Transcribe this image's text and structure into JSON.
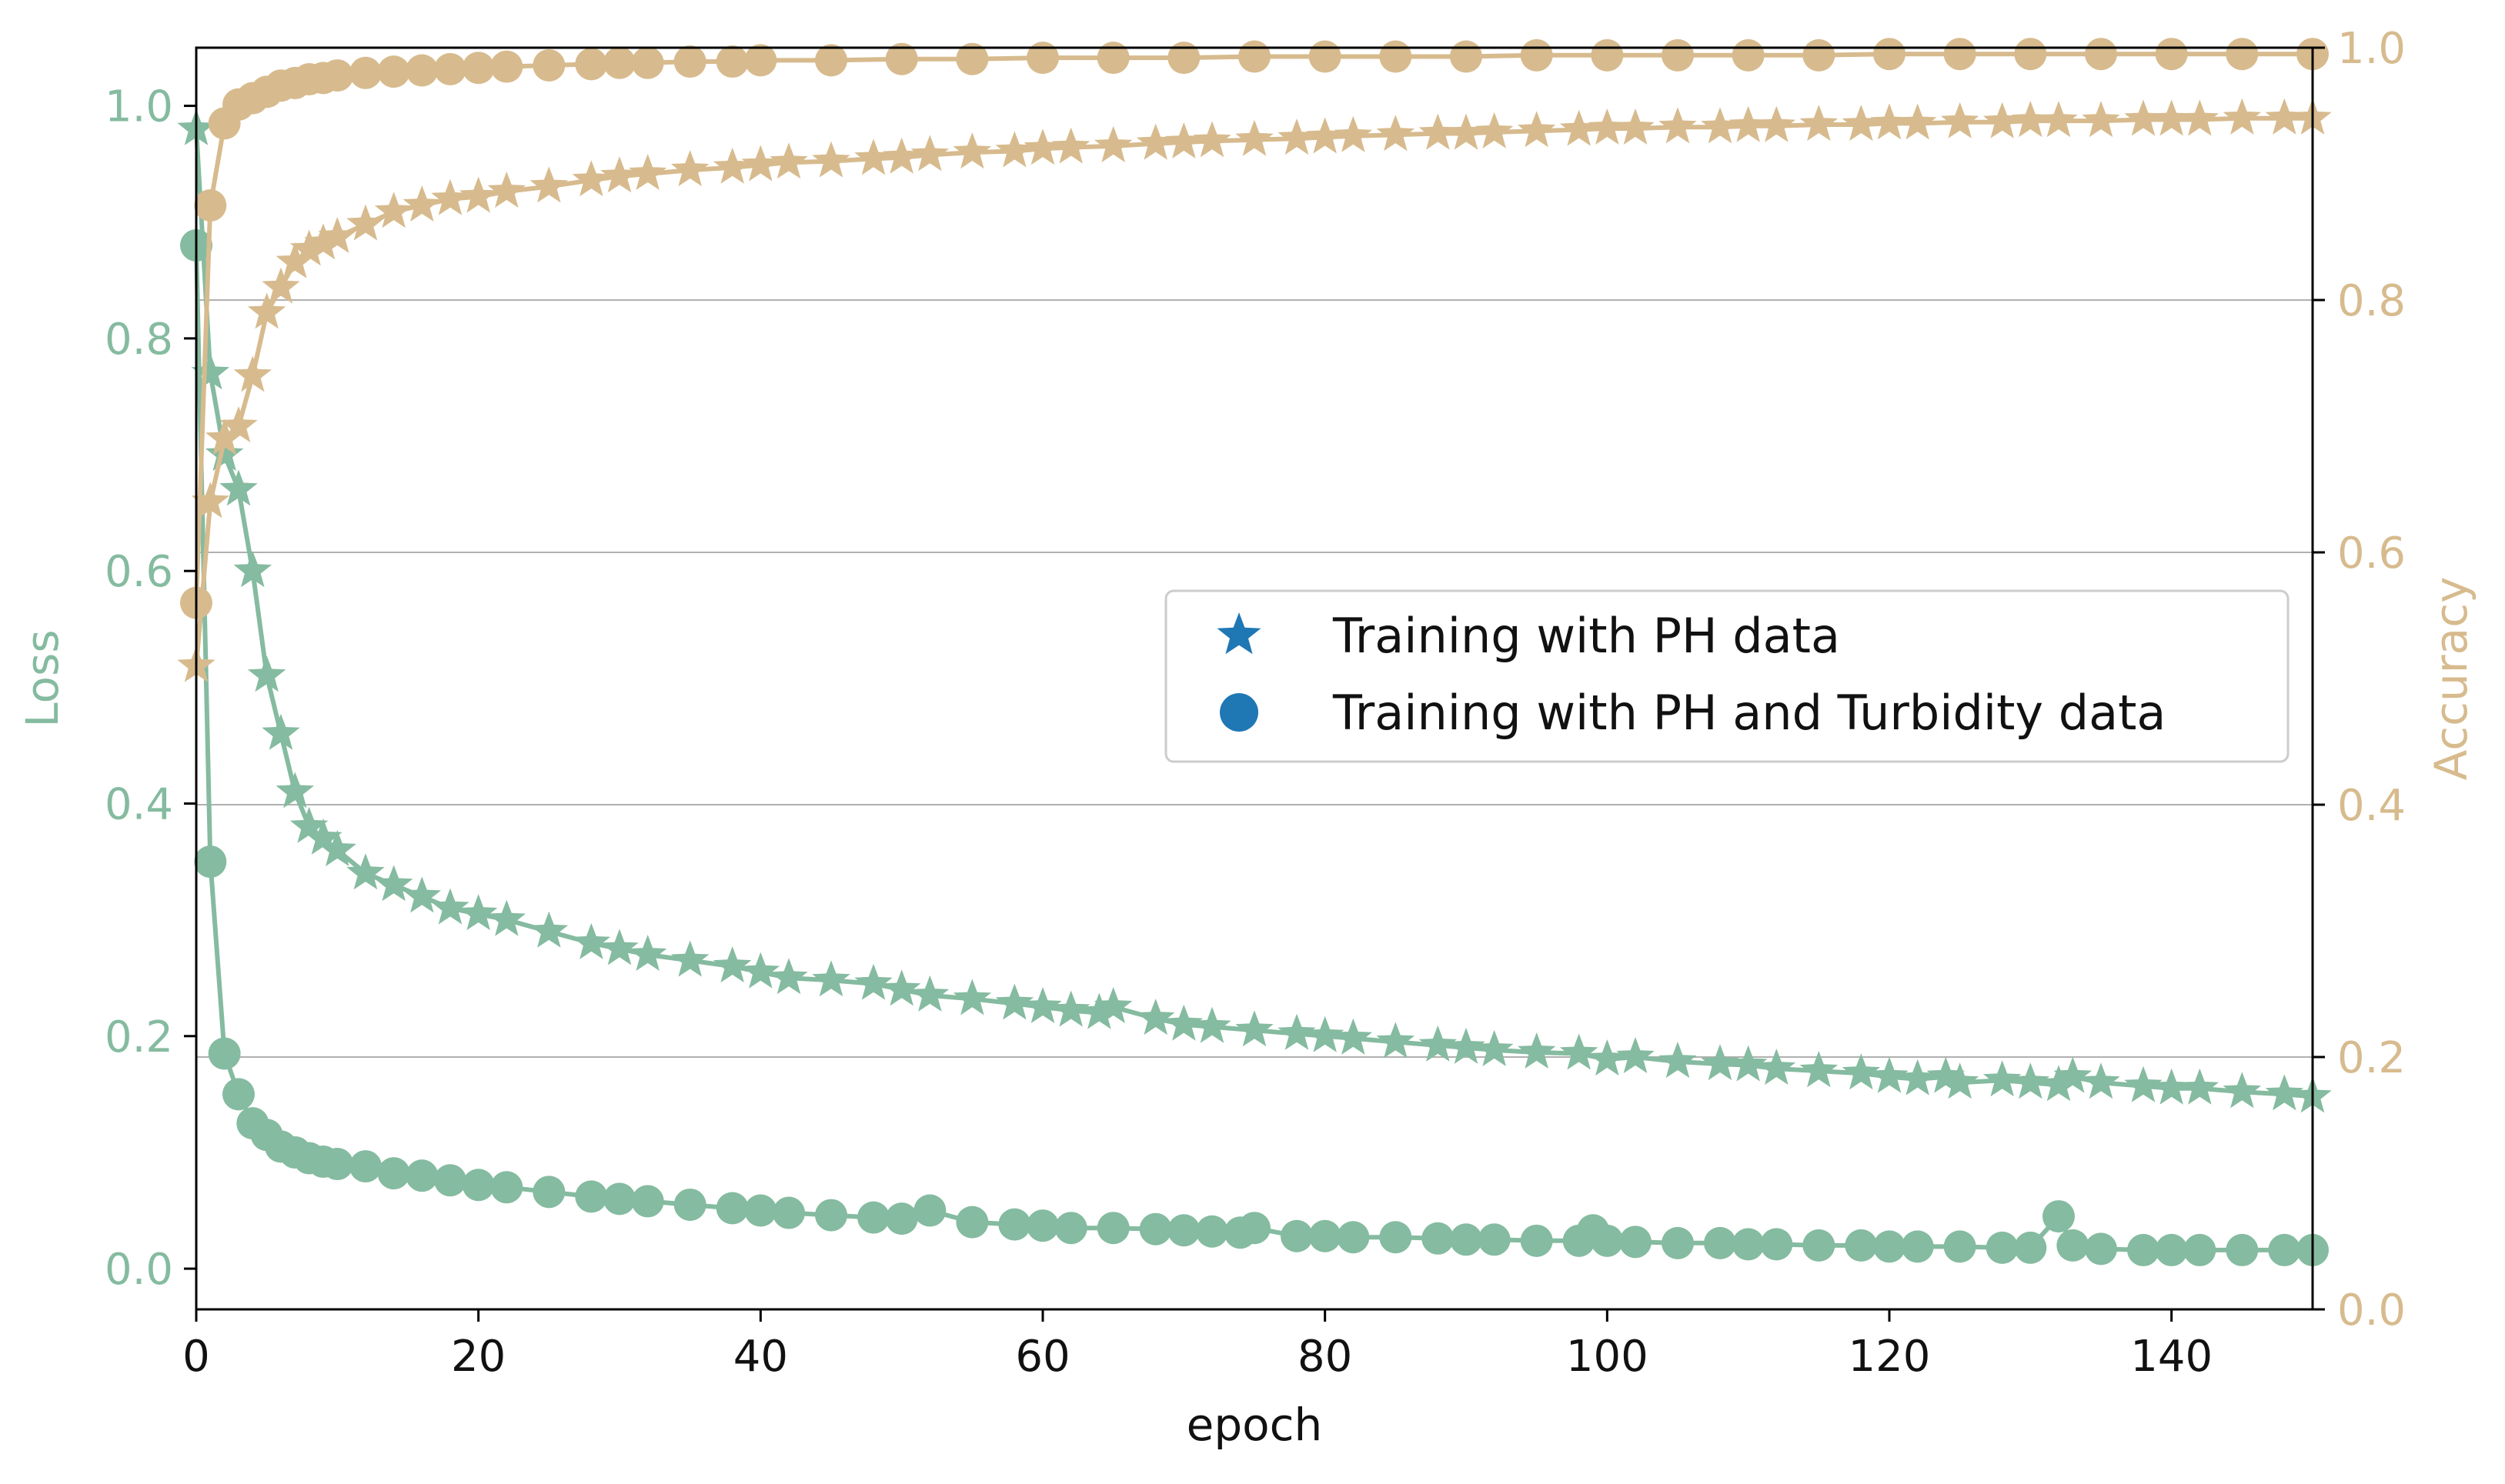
{
  "chart_data": {
    "type": "line",
    "title": "",
    "xlabel": "epoch",
    "ylabel_left": "Loss",
    "ylabel_right": "Accuracy",
    "xlim": [
      0,
      150
    ],
    "ylim_left": [
      -0.035,
      1.05
    ],
    "ylim_right": [
      0.0,
      1.0
    ],
    "x_ticks": [
      "0",
      "20",
      "40",
      "60",
      "80",
      "100",
      "120",
      "140"
    ],
    "x_tick_values": [
      0,
      20,
      40,
      60,
      80,
      100,
      120,
      140
    ],
    "y_left_ticks": [
      "0.0",
      "0.2",
      "0.4",
      "0.6",
      "0.8",
      "1.0"
    ],
    "y_left_tick_values": [
      0.0,
      0.2,
      0.4,
      0.6,
      0.8,
      1.0
    ],
    "y_right_ticks": [
      "0.0",
      "0.2",
      "0.4",
      "0.6",
      "0.8",
      "1.0"
    ],
    "y_right_tick_values": [
      0.0,
      0.2,
      0.4,
      0.6,
      0.8,
      1.0
    ],
    "grid": "horizontal (right axis)",
    "legend_position": "center-right",
    "legend": [
      {
        "label": "Training with PH data",
        "marker": "star"
      },
      {
        "label": "Training with PH and Turbidity data",
        "marker": "circle"
      }
    ],
    "colors": {
      "loss": "#85bba0",
      "accuracy": "#d7bb8e",
      "legend_marker": "#1f77b4",
      "grid": "#b0b0b0",
      "axis": "#000000"
    },
    "series": [
      {
        "name": "Loss - Training with PH data",
        "axis": "left",
        "marker": "star",
        "x": [
          0,
          1,
          2,
          3,
          4,
          5,
          6,
          7,
          8,
          9,
          10,
          12,
          14,
          16,
          18,
          20,
          22,
          25,
          28,
          30,
          32,
          35,
          38,
          40,
          42,
          45,
          48,
          50,
          52,
          55,
          58,
          60,
          62,
          64,
          65,
          68,
          70,
          72,
          75,
          78,
          80,
          82,
          85,
          88,
          90,
          92,
          95,
          98,
          100,
          102,
          105,
          108,
          110,
          112,
          115,
          118,
          120,
          122,
          124,
          125,
          128,
          130,
          132,
          133,
          135,
          138,
          140,
          142,
          145,
          148,
          150
        ],
        "y": [
          0.98,
          0.77,
          0.7,
          0.67,
          0.6,
          0.51,
          0.46,
          0.41,
          0.38,
          0.37,
          0.36,
          0.34,
          0.33,
          0.32,
          0.31,
          0.305,
          0.3,
          0.29,
          0.28,
          0.275,
          0.27,
          0.265,
          0.26,
          0.255,
          0.25,
          0.248,
          0.245,
          0.24,
          0.235,
          0.232,
          0.228,
          0.225,
          0.222,
          0.22,
          0.225,
          0.215,
          0.21,
          0.208,
          0.205,
          0.202,
          0.2,
          0.198,
          0.195,
          0.192,
          0.19,
          0.188,
          0.186,
          0.185,
          0.18,
          0.182,
          0.178,
          0.176,
          0.175,
          0.172,
          0.17,
          0.168,
          0.165,
          0.163,
          0.165,
          0.16,
          0.162,
          0.16,
          0.158,
          0.165,
          0.16,
          0.157,
          0.155,
          0.155,
          0.152,
          0.15,
          0.148
        ]
      },
      {
        "name": "Loss - Training with PH and Turbidity data",
        "axis": "left",
        "marker": "circle",
        "x": [
          0,
          1,
          2,
          3,
          4,
          5,
          6,
          7,
          8,
          9,
          10,
          12,
          14,
          16,
          18,
          20,
          22,
          25,
          28,
          30,
          32,
          35,
          38,
          40,
          42,
          45,
          48,
          50,
          52,
          55,
          58,
          60,
          62,
          65,
          68,
          70,
          72,
          74,
          75,
          78,
          80,
          82,
          85,
          88,
          90,
          92,
          95,
          98,
          99,
          100,
          102,
          105,
          108,
          110,
          112,
          115,
          118,
          120,
          122,
          125,
          128,
          130,
          132,
          133,
          135,
          138,
          140,
          142,
          145,
          148,
          150
        ],
        "y": [
          0.88,
          0.35,
          0.185,
          0.15,
          0.125,
          0.115,
          0.105,
          0.1,
          0.095,
          0.092,
          0.09,
          0.088,
          0.082,
          0.08,
          0.076,
          0.072,
          0.07,
          0.066,
          0.062,
          0.06,
          0.058,
          0.055,
          0.052,
          0.05,
          0.048,
          0.046,
          0.044,
          0.043,
          0.05,
          0.04,
          0.038,
          0.037,
          0.035,
          0.035,
          0.034,
          0.033,
          0.032,
          0.031,
          0.035,
          0.028,
          0.028,
          0.027,
          0.027,
          0.026,
          0.025,
          0.025,
          0.024,
          0.024,
          0.033,
          0.024,
          0.023,
          0.022,
          0.022,
          0.021,
          0.021,
          0.02,
          0.02,
          0.019,
          0.019,
          0.019,
          0.018,
          0.018,
          0.045,
          0.02,
          0.017,
          0.016,
          0.016,
          0.016,
          0.016,
          0.016,
          0.016
        ]
      },
      {
        "name": "Accuracy - Training with PH data",
        "axis": "right",
        "marker": "star",
        "x": [
          0,
          1,
          2,
          3,
          4,
          5,
          6,
          7,
          8,
          9,
          10,
          12,
          14,
          16,
          18,
          20,
          22,
          25,
          28,
          30,
          32,
          35,
          38,
          40,
          42,
          45,
          48,
          50,
          52,
          55,
          58,
          60,
          62,
          65,
          68,
          70,
          72,
          75,
          78,
          80,
          82,
          85,
          88,
          90,
          92,
          95,
          98,
          100,
          102,
          105,
          108,
          110,
          112,
          115,
          118,
          120,
          122,
          125,
          128,
          130,
          132,
          135,
          138,
          140,
          142,
          145,
          148,
          150
        ],
        "y": [
          0.51,
          0.64,
          0.69,
          0.7,
          0.74,
          0.79,
          0.81,
          0.83,
          0.84,
          0.845,
          0.85,
          0.86,
          0.87,
          0.875,
          0.88,
          0.882,
          0.886,
          0.89,
          0.895,
          0.898,
          0.9,
          0.903,
          0.905,
          0.907,
          0.909,
          0.91,
          0.912,
          0.913,
          0.915,
          0.917,
          0.918,
          0.92,
          0.921,
          0.922,
          0.924,
          0.925,
          0.926,
          0.927,
          0.928,
          0.929,
          0.93,
          0.931,
          0.932,
          0.932,
          0.933,
          0.934,
          0.935,
          0.936,
          0.936,
          0.937,
          0.937,
          0.938,
          0.938,
          0.939,
          0.939,
          0.94,
          0.94,
          0.941,
          0.941,
          0.942,
          0.942,
          0.942,
          0.943,
          0.943,
          0.943,
          0.944,
          0.944,
          0.944
        ]
      },
      {
        "name": "Accuracy - Training with PH and Turbidity data",
        "axis": "right",
        "marker": "circle",
        "x": [
          0,
          1,
          2,
          3,
          4,
          5,
          6,
          7,
          8,
          9,
          10,
          12,
          14,
          16,
          18,
          20,
          22,
          25,
          28,
          30,
          32,
          35,
          38,
          40,
          45,
          50,
          55,
          60,
          65,
          70,
          75,
          80,
          85,
          90,
          95,
          100,
          105,
          110,
          115,
          120,
          125,
          130,
          135,
          140,
          145,
          150
        ],
        "y": [
          0.56,
          0.875,
          0.94,
          0.955,
          0.96,
          0.965,
          0.97,
          0.972,
          0.975,
          0.976,
          0.978,
          0.98,
          0.981,
          0.982,
          0.983,
          0.984,
          0.985,
          0.986,
          0.987,
          0.988,
          0.988,
          0.989,
          0.989,
          0.99,
          0.99,
          0.991,
          0.991,
          0.992,
          0.992,
          0.992,
          0.993,
          0.993,
          0.993,
          0.993,
          0.994,
          0.994,
          0.994,
          0.994,
          0.994,
          0.995,
          0.995,
          0.995,
          0.995,
          0.995,
          0.995,
          0.995
        ]
      }
    ]
  }
}
